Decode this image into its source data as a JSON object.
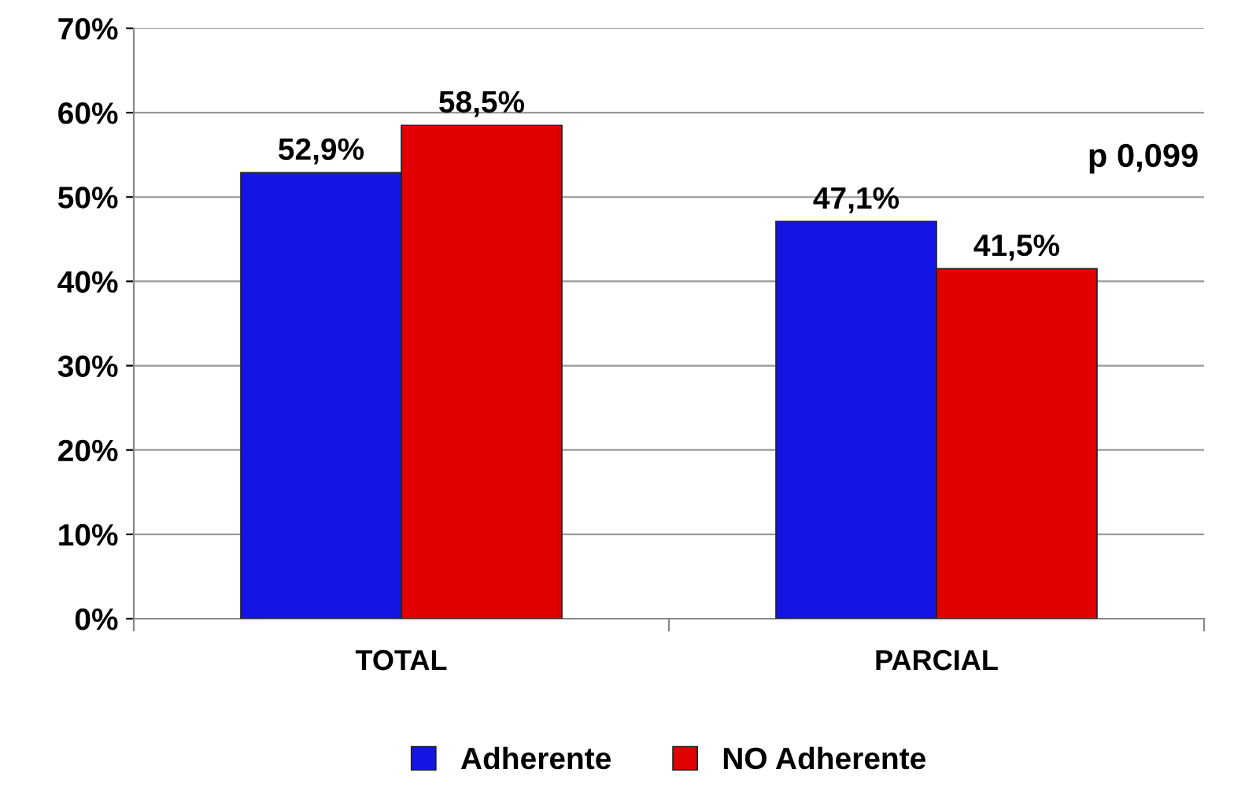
{
  "chart_data": {
    "type": "bar",
    "categories": [
      "TOTAL",
      "PARCIAL"
    ],
    "series": [
      {
        "name": "Adherente",
        "color": "#1414e6",
        "values": [
          52.9,
          47.1
        ],
        "value_labels": [
          "52,9%",
          "47,1%"
        ]
      },
      {
        "name": "NO Adherente",
        "color": "#e00000",
        "values": [
          58.5,
          41.5
        ],
        "value_labels": [
          "58,5%",
          "41,5%"
        ]
      }
    ],
    "ylim": [
      0,
      70
    ],
    "yticks": [
      {
        "value": 0,
        "label": "0%"
      },
      {
        "value": 10,
        "label": "10%"
      },
      {
        "value": 20,
        "label": "20%"
      },
      {
        "value": 30,
        "label": "30%"
      },
      {
        "value": 40,
        "label": "40%"
      },
      {
        "value": 50,
        "label": "50%"
      },
      {
        "value": 60,
        "label": "60%"
      },
      {
        "value": 70,
        "label": "70%"
      }
    ],
    "grid": "y",
    "legend": "bottom",
    "annotations": [
      "p 0,099"
    ]
  }
}
